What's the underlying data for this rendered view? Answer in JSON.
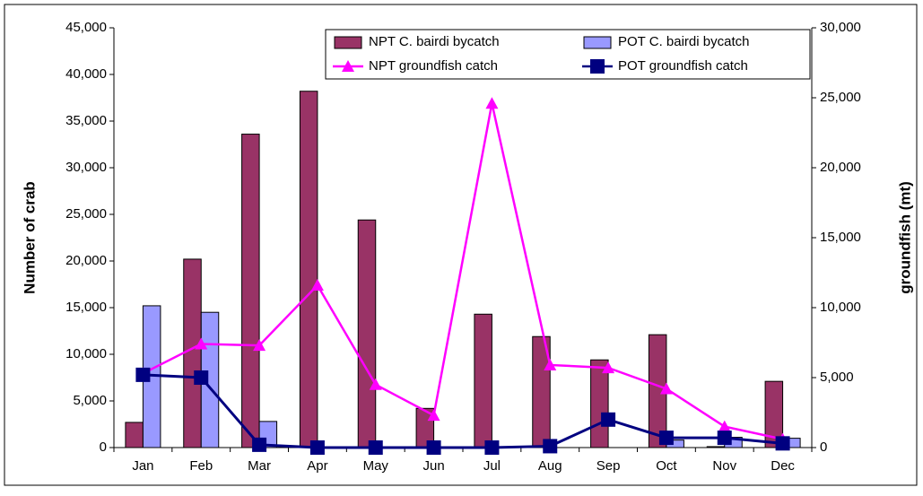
{
  "chart_data": {
    "type": "bar",
    "categories": [
      "Jan",
      "Feb",
      "Mar",
      "Apr",
      "May",
      "Jun",
      "Jul",
      "Aug",
      "Sep",
      "Oct",
      "Nov",
      "Dec"
    ],
    "ylabel": "Number of crab",
    "y2label": "groundfish (mt)",
    "ylim": [
      0,
      45000
    ],
    "yticks": [
      0,
      {
        "value": 5000,
        "label": "5,000"
      },
      {
        "value": 10000,
        "label": "10,000"
      },
      {
        "value": 15000,
        "label": "15,000"
      },
      {
        "value": 20000,
        "label": "20,000"
      },
      {
        "value": 25000,
        "label": "25,000"
      },
      {
        "value": 30000,
        "label": "30,000"
      },
      {
        "value": 35000,
        "label": "35,000"
      },
      {
        "value": 40000,
        "label": "40,000"
      },
      {
        "value": 45000,
        "label": "45,000"
      }
    ],
    "y2lim": [
      0,
      30000
    ],
    "y2ticks": [
      0,
      {
        "value": 5000,
        "label": "5,000"
      },
      {
        "value": 10000,
        "label": "10,000"
      },
      {
        "value": 15000,
        "label": "15,000"
      },
      {
        "value": 20000,
        "label": "20,000"
      },
      {
        "value": 25000,
        "label": "25,000"
      },
      {
        "value": 30000,
        "label": "30,000"
      }
    ],
    "legend": "top-right",
    "series": [
      {
        "name": "NPT C. bairdi bycatch",
        "type": "bar",
        "color": "#993366",
        "values": [
          2700,
          20200,
          33600,
          38200,
          24400,
          4200,
          14300,
          11900,
          9400,
          12100,
          100,
          7100
        ]
      },
      {
        "name": "POT C. bairdi bycatch",
        "type": "bar",
        "color": "#9999ff",
        "values": [
          15200,
          14500,
          2800,
          0,
          0,
          0,
          0,
          0,
          0,
          800,
          1100,
          1000
        ]
      },
      {
        "name": "NPT groundfish catch",
        "type": "line",
        "marker": "triangle",
        "axis": "y2",
        "color": "#ff00ff",
        "values": [
          5300,
          7400,
          7300,
          11600,
          4500,
          2300,
          24600,
          5900,
          5700,
          4200,
          1500,
          600
        ]
      },
      {
        "name": "POT groundfish catch",
        "type": "line",
        "marker": "square",
        "axis": "y2",
        "color": "#000080",
        "values": [
          5200,
          5000,
          200,
          0,
          0,
          0,
          0,
          100,
          2000,
          700,
          700,
          300
        ]
      }
    ]
  }
}
